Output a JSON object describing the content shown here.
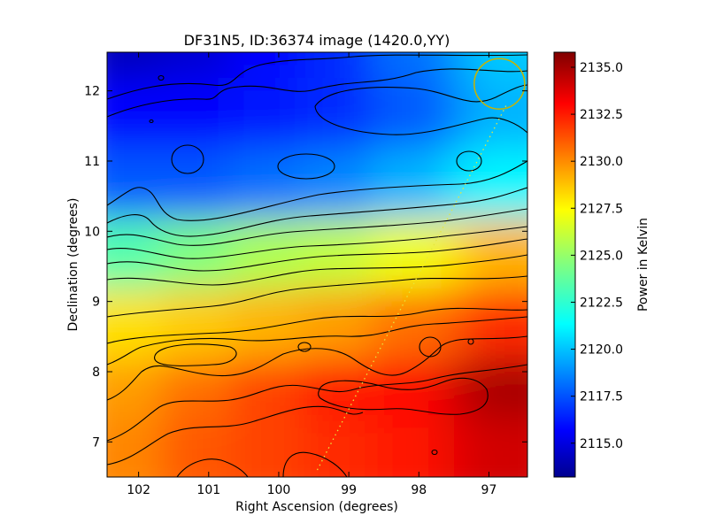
{
  "chart_data": {
    "type": "heatmap",
    "title": "DF31N5, ID:36374 image (1420.0,YY)",
    "xlabel": "Right Ascension (degrees)",
    "ylabel": "Declination (degrees)",
    "xlim": [
      102.45,
      96.45
    ],
    "ylim": [
      6.5,
      12.55
    ],
    "x_ticks": [
      102,
      101,
      100,
      99,
      98,
      97
    ],
    "x_tick_labels": [
      "102",
      "101",
      "100",
      "99",
      "98",
      "97"
    ],
    "y_ticks": [
      7,
      8,
      9,
      10,
      11,
      12
    ],
    "y_tick_labels": [
      "7",
      "8",
      "9",
      "10",
      "11",
      "12"
    ],
    "colorbar": {
      "label": "Power in Kelvin",
      "range": [
        2113.2,
        2135.8
      ],
      "ticks": [
        2115.0,
        2117.5,
        2120.0,
        2122.5,
        2125.0,
        2127.5,
        2130.0,
        2132.5,
        2135.0
      ],
      "tick_labels": [
        "2115.0",
        "2117.5",
        "2120.0",
        "2122.5",
        "2125.0",
        "2127.5",
        "2130.0",
        "2132.5",
        "2135.0"
      ],
      "colormap": "jet"
    },
    "field_grid": {
      "dec": [
        12.5,
        11.5,
        10.5,
        9.5,
        8.5,
        7.5,
        6.7
      ],
      "ra": [
        102.2,
        101,
        100,
        99,
        98,
        97,
        96.6
      ],
      "values_kelvin": [
        [
          2114.5,
          2115.0,
          2116.0,
          2117.0,
          2118.5,
          2119.5,
          2120.5
        ],
        [
          2116.0,
          2116.0,
          2116.5,
          2117.0,
          2118.0,
          2119.0,
          2120.0
        ],
        [
          2118.0,
          2118.0,
          2118.5,
          2119.0,
          2120.0,
          2121.0,
          2121.5
        ],
        [
          2123.5,
          2124.5,
          2125.5,
          2126.0,
          2127.0,
          2128.0,
          2129.0
        ],
        [
          2128.0,
          2128.5,
          2129.0,
          2129.5,
          2130.5,
          2131.0,
          2132.0
        ],
        [
          2129.5,
          2130.5,
          2131.5,
          2132.5,
          2133.0,
          2134.0,
          2135.0
        ],
        [
          2130.0,
          2131.0,
          2131.5,
          2132.0,
          2132.5,
          2133.5,
          2134.0
        ]
      ]
    },
    "features": {
      "marker_circle": {
        "ra": 96.85,
        "dec": 12.1,
        "radius_deg": 0.36,
        "color": "#c8b400"
      },
      "dotted_track": {
        "from": {
          "ra": 99.45,
          "dec": 6.6
        },
        "to": {
          "ra": 96.75,
          "dec": 11.8
        },
        "color": "#e6e63c"
      },
      "grid": false
    }
  }
}
